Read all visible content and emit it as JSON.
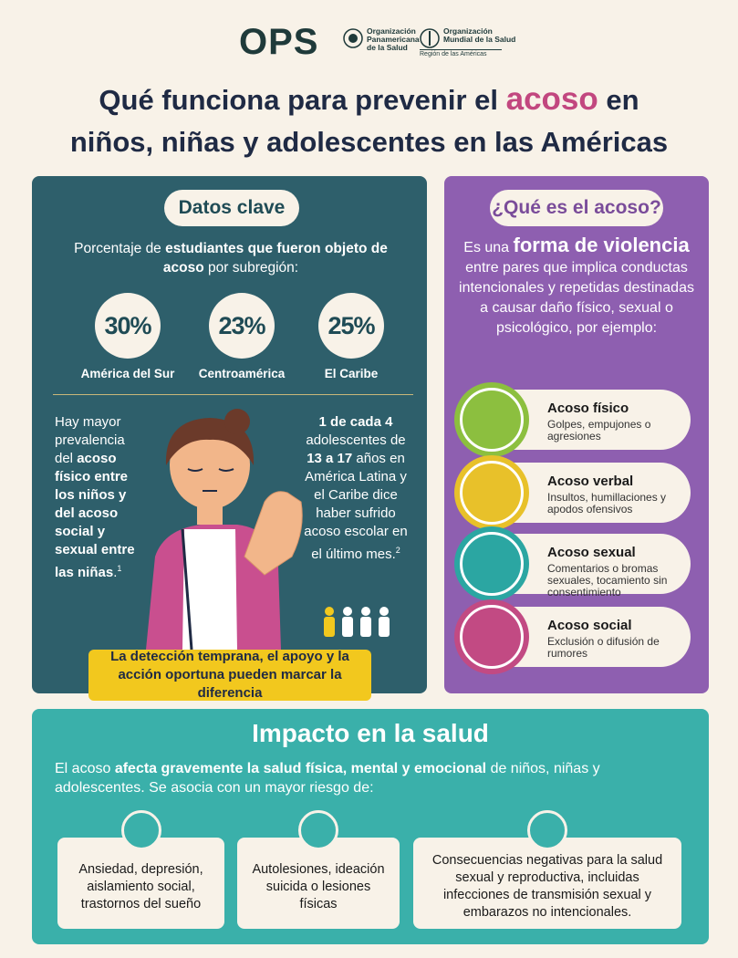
{
  "header": {
    "logo": "OPS",
    "org1": [
      "Organización",
      "Panamericana",
      "de la Salud"
    ],
    "org2": [
      "Organización",
      "Mundial de la Salud"
    ],
    "region": "Región de las Américas"
  },
  "title": {
    "part1": "Qué funciona para prevenir el",
    "highlight": "acoso",
    "part2": "en",
    "line2": "niños, niñas y adolescentes en las Américas"
  },
  "datos": {
    "heading": "Datos clave",
    "intro": {
      "a": "Porcentaje de",
      "b": "estudiantes que fueron objeto de acoso",
      "c": "por subregión:"
    },
    "stats": [
      {
        "value": "30%",
        "region": "América del Sur"
      },
      {
        "value": "23%",
        "region": "Centroamérica"
      },
      {
        "value": "25%",
        "region": "El Caribe"
      }
    ],
    "left": {
      "a": "Hay mayor prevalencia del",
      "b": "acoso físico entre los niños y del acoso social y sexual entre las niñas",
      "c": ".",
      "note": "1"
    },
    "right": {
      "a": "1 de cada 4",
      "b": "adolescentes de",
      "c": "13 a 17",
      "d": "años en América Latina y el Caribe dice haber sufrido acoso escolar en el último mes.",
      "note": "2"
    },
    "banner": "La detección temprana, el apoyo y la acción oportuna pueden marcar la diferencia"
  },
  "acoso": {
    "heading": "¿Qué es el acoso?",
    "def": {
      "a": "Es una",
      "b": "forma de violencia",
      "c": "entre pares que implica conductas intencionales y repetidas destinadas a causar daño físico, sexual o psicológico, por ejemplo:"
    },
    "types": [
      {
        "title": "Acoso físico",
        "desc": "Golpes, empujones o agresiones"
      },
      {
        "title": "Acoso verbal",
        "desc": "Insultos, humillaciones y apodos ofensivos"
      },
      {
        "title": "Acoso sexual",
        "desc": "Comentarios o bromas sexuales, tocamiento sin consentimiento"
      },
      {
        "title": "Acoso social",
        "desc": "Exclusión o difusión de rumores"
      }
    ]
  },
  "impacto": {
    "heading": "Impacto en la salud",
    "intro": {
      "a": "El acoso",
      "b": "afecta gravemente la salud física, mental y emocional",
      "c": "de niños, niñas y adolescentes. Se asocia con un mayor riesgo de:"
    },
    "cards": [
      "Ansiedad, depresión, aislamiento social, trastornos del sueño",
      "Autolesiones, ideación suicida o lesiones físicas",
      "Consecuencias negativas para la salud sexual y reproductiva, incluidas infecciones de transmisión sexual y embarazos no intencionales."
    ]
  }
}
